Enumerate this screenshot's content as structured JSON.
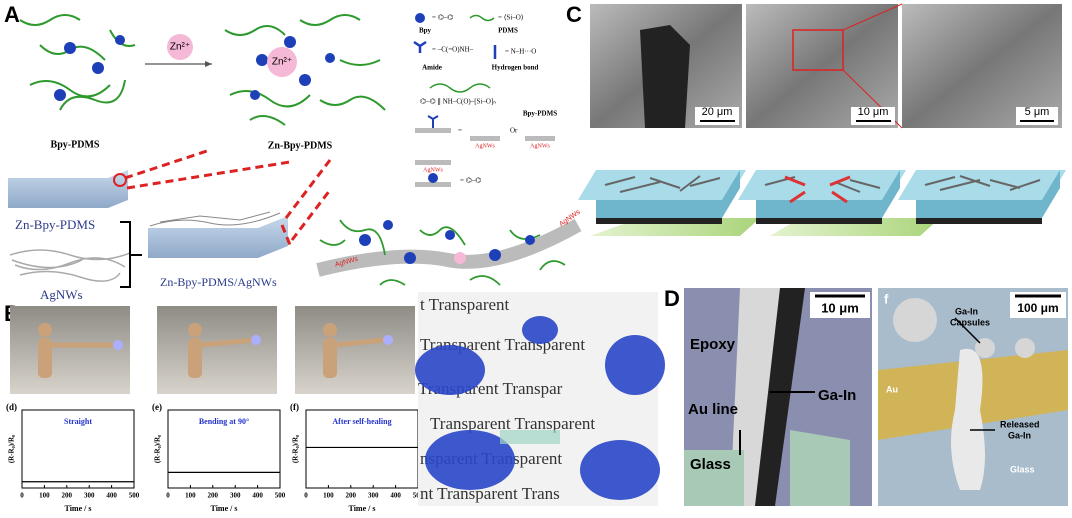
{
  "panel_a": {
    "label": "A",
    "zn_ion_left": "Zn²⁺",
    "zn_ion_right": "Zn²⁺",
    "bpy_pdms": "Bpy-PDMS",
    "zn_bpy_pdms": "Zn-Bpy-PDMS",
    "legend": {
      "bpy": "Bpy",
      "pdms": "PDMS",
      "amide": "Amide",
      "hydrogen_bond": "Hydrogen bond",
      "bpy_pdms": "Bpy-PDMS",
      "agnws": [
        "AgNWs",
        "AgNWs",
        "AgNWs"
      ],
      "or": "Or"
    },
    "block_label": "Zn-Bpy-PDMS",
    "composite_label": "Zn-Bpy-PDMS/AgNWs",
    "agnws_label": "AgNWs",
    "ribbon_labels": [
      "AgNWs",
      "AgNWs"
    ]
  },
  "panel_c": {
    "label": "C",
    "scale_bars": [
      "20 μm",
      "10 μm",
      "5 μm"
    ]
  },
  "panel_b": {
    "label": "B",
    "plots": [
      {
        "tag": "(d)",
        "title": "Straight",
        "y_label": "(R-R₀)/R₀",
        "x_label": "Time / s",
        "xlim": [
          0,
          500
        ],
        "xticks": [
          0,
          100,
          200,
          300,
          400,
          500
        ],
        "ylim": [
          0,
          1
        ],
        "x": [
          0,
          500
        ],
        "values": [
          0.08,
          0.08
        ]
      },
      {
        "tag": "(e)",
        "title": "Bending at 90°",
        "y_label": "(R-R₀)/R₀",
        "x_label": "Time / s",
        "xlim": [
          0,
          500
        ],
        "xticks": [
          0,
          100,
          200,
          300,
          400,
          500
        ],
        "ylim": [
          0,
          1
        ],
        "x": [
          0,
          500
        ],
        "values": [
          0.2,
          0.2
        ]
      },
      {
        "tag": "(f)",
        "title": "After self-healing",
        "y_label": "(R-R₀)/R₀",
        "x_label": "Time / s",
        "xlim": [
          0,
          500
        ],
        "xticks": [
          0,
          100,
          200,
          300,
          400,
          500
        ],
        "ylim": [
          0,
          1
        ],
        "x": [
          0,
          500
        ],
        "values": [
          0.52,
          0.52
        ]
      }
    ],
    "photo_text": [
      "t Transparent",
      "Transparent Transparent",
      "Transparent Transpar",
      "Transparent Transparent",
      "nsparent Transparent",
      "nt Transparent Trans"
    ]
  },
  "panel_d": {
    "label": "D",
    "left": {
      "scale_bar": "10 μm",
      "epoxy": "Epoxy",
      "au_line": "Au line",
      "ga_in": "Ga-In",
      "glass": "Glass"
    },
    "right": {
      "label": "f",
      "scale_bar": "100 μm",
      "capsules": [
        "Ga-In",
        "Capsules"
      ],
      "au": "Au",
      "released": [
        "Released",
        "Ga-In"
      ],
      "glass": "Glass"
    }
  }
}
